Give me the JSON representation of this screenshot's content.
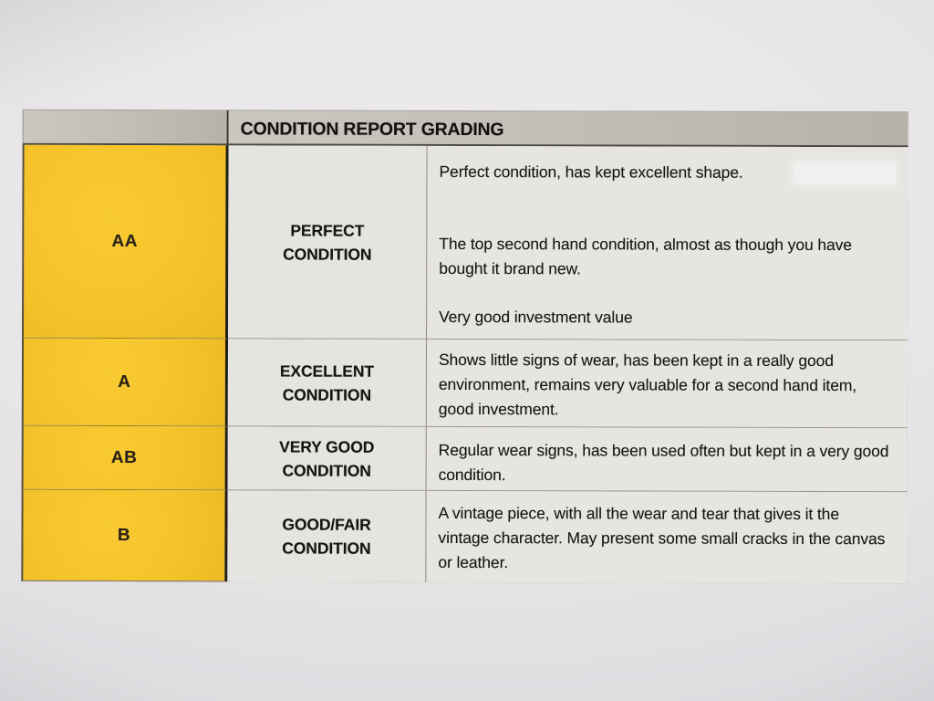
{
  "table": {
    "title": "CONDITION REPORT GRADING",
    "rows": [
      {
        "grade": "AA",
        "label": "PERFECT CONDITION",
        "descriptions": [
          "Perfect condition, has kept excellent shape.",
          "The top second hand condition, almost as though you have bought it brand new.",
          "Very good investment value"
        ]
      },
      {
        "grade": "A",
        "label": "EXCELLENT CONDITION",
        "descriptions": [
          "Shows little signs of wear, has been kept in a really good environment, remains very valuable for a second hand item, good investment."
        ]
      },
      {
        "grade": "AB",
        "label": "VERY GOOD CONDITION",
        "descriptions": [
          "Regular wear signs, has been used often but kept in a very good condition."
        ]
      },
      {
        "grade": "B",
        "label": "GOOD/FAIR CONDITION",
        "descriptions": [
          "A vintage piece, with all the wear and tear that gives it the vintage character. May present some small cracks in the canvas or leather."
        ]
      }
    ],
    "colors": {
      "grade_cell_yellow": "#f5c42a",
      "header_gray": "#c3bfb8",
      "cell_background": "#e7e5e1",
      "paper_background": "#e8e6e8",
      "text": "#1b1916"
    }
  }
}
